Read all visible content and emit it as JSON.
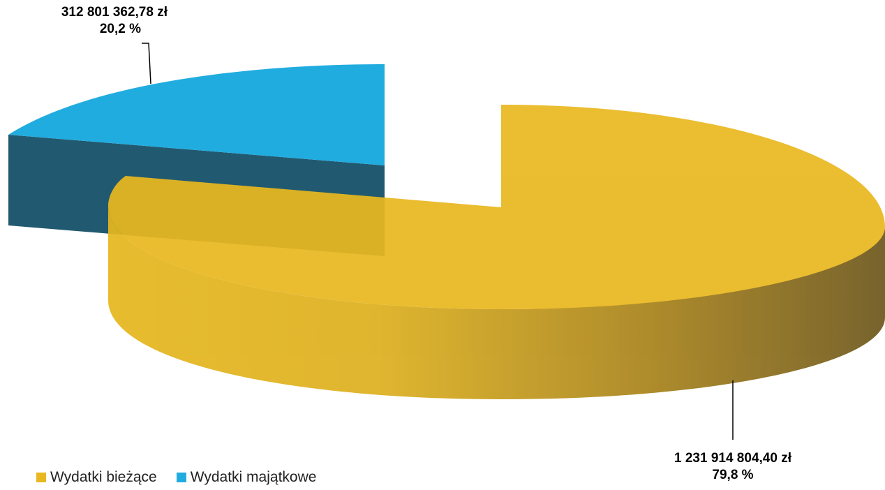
{
  "chart_data": {
    "type": "pie",
    "title": "",
    "series": [
      {
        "name": "Wydatki bieżące",
        "value": 1231914804.4,
        "value_label": "1 231 914 804,40 zł",
        "percent_label": "79,8 %",
        "color": "#E9B820"
      },
      {
        "name": "Wydatki majątkowe",
        "value": 312801362.78,
        "value_label": "312 801 362,78 zł",
        "percent_label": "20,2 %",
        "color": "#21ACE0"
      }
    ],
    "legend_position": "bottom-left",
    "style": "3d-exploded"
  }
}
